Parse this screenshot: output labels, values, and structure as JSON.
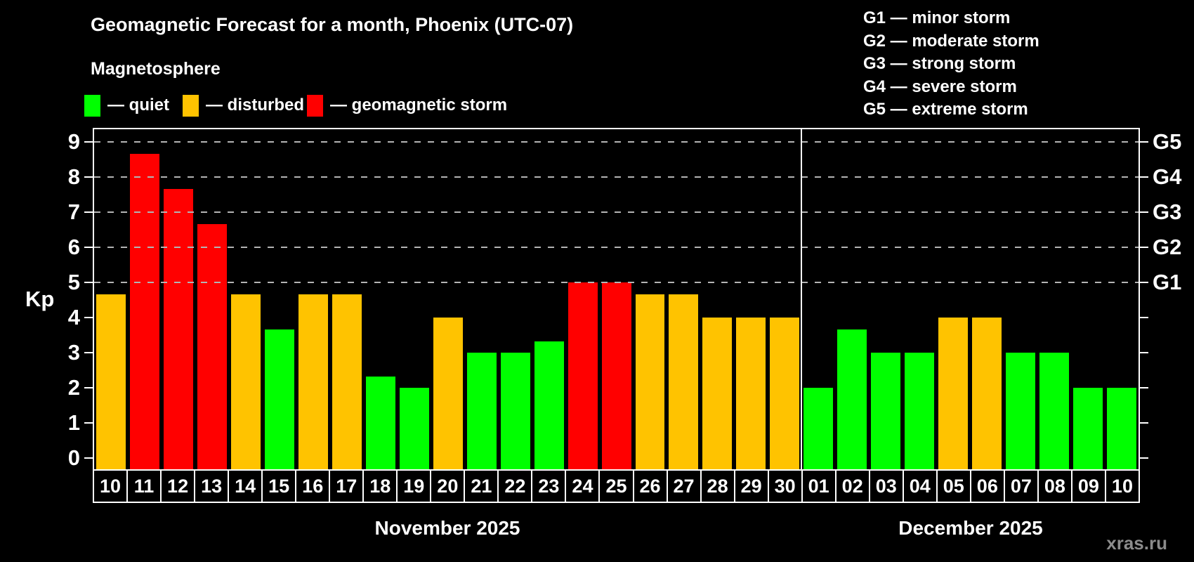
{
  "header": {
    "title": "Geomagnetic Forecast for a month, Phoenix (UTC-07)",
    "subtitle": "Magnetosphere"
  },
  "legend": {
    "items": [
      {
        "key": "quiet",
        "label": "— quiet",
        "color": "#00ff00"
      },
      {
        "key": "disturbed",
        "label": "— disturbed",
        "color": "#ffc300"
      },
      {
        "key": "storm",
        "label": "— geomagnetic storm",
        "color": "#ff0000"
      }
    ]
  },
  "g_legend": {
    "items": [
      {
        "label": "G1 — minor storm"
      },
      {
        "label": "G2 — moderate storm"
      },
      {
        "label": "G3 — strong storm"
      },
      {
        "label": "G4 — severe storm"
      },
      {
        "label": "G5 — extreme storm"
      }
    ]
  },
  "axes": {
    "y_label": "Kp",
    "y_ticks": [
      0,
      1,
      2,
      3,
      4,
      5,
      6,
      7,
      8,
      9
    ],
    "right_labels": [
      {
        "value": 5,
        "label": "G1"
      },
      {
        "value": 6,
        "label": "G2"
      },
      {
        "value": 7,
        "label": "G3"
      },
      {
        "value": 8,
        "label": "G4"
      },
      {
        "value": 9,
        "label": "G5"
      }
    ]
  },
  "months": [
    {
      "label": "November 2025",
      "key": "nov",
      "days": 21
    },
    {
      "label": "December 2025",
      "key": "dec",
      "days": 10
    }
  ],
  "watermark": "xras.ru",
  "chart_data": {
    "type": "bar",
    "title": "Geomagnetic Forecast for a month, Phoenix (UTC-07)",
    "xlabel": "",
    "ylabel": "Kp",
    "ylim": [
      0,
      9.4
    ],
    "grid": "dashed horizontal at Kp 5-9 only",
    "legend_position": "top-left and top-right",
    "gridlines": [
      5,
      6,
      7,
      8,
      9
    ],
    "status_colors": {
      "quiet": "#00ff00",
      "disturbed": "#ffc300",
      "storm": "#ff0000"
    },
    "categories": [
      "10",
      "11",
      "12",
      "13",
      "14",
      "15",
      "16",
      "17",
      "18",
      "19",
      "20",
      "21",
      "22",
      "23",
      "24",
      "25",
      "26",
      "27",
      "28",
      "29",
      "30",
      "01",
      "02",
      "03",
      "04",
      "05",
      "06",
      "07",
      "08",
      "09",
      "10"
    ],
    "points": [
      {
        "month": "nov",
        "day": "10",
        "kp": 4.67,
        "status": "disturbed"
      },
      {
        "month": "nov",
        "day": "11",
        "kp": 8.67,
        "status": "storm"
      },
      {
        "month": "nov",
        "day": "12",
        "kp": 7.67,
        "status": "storm"
      },
      {
        "month": "nov",
        "day": "13",
        "kp": 6.67,
        "status": "storm"
      },
      {
        "month": "nov",
        "day": "14",
        "kp": 4.67,
        "status": "disturbed"
      },
      {
        "month": "nov",
        "day": "15",
        "kp": 3.67,
        "status": "quiet"
      },
      {
        "month": "nov",
        "day": "16",
        "kp": 4.67,
        "status": "disturbed"
      },
      {
        "month": "nov",
        "day": "17",
        "kp": 4.67,
        "status": "disturbed"
      },
      {
        "month": "nov",
        "day": "18",
        "kp": 2.33,
        "status": "quiet"
      },
      {
        "month": "nov",
        "day": "19",
        "kp": 2.0,
        "status": "quiet"
      },
      {
        "month": "nov",
        "day": "20",
        "kp": 4.0,
        "status": "disturbed"
      },
      {
        "month": "nov",
        "day": "21",
        "kp": 3.0,
        "status": "quiet"
      },
      {
        "month": "nov",
        "day": "22",
        "kp": 3.0,
        "status": "quiet"
      },
      {
        "month": "nov",
        "day": "23",
        "kp": 3.33,
        "status": "quiet"
      },
      {
        "month": "nov",
        "day": "24",
        "kp": 5.0,
        "status": "storm"
      },
      {
        "month": "nov",
        "day": "25",
        "kp": 5.0,
        "status": "storm"
      },
      {
        "month": "nov",
        "day": "26",
        "kp": 4.67,
        "status": "disturbed"
      },
      {
        "month": "nov",
        "day": "27",
        "kp": 4.67,
        "status": "disturbed"
      },
      {
        "month": "nov",
        "day": "28",
        "kp": 4.0,
        "status": "disturbed"
      },
      {
        "month": "nov",
        "day": "29",
        "kp": 4.0,
        "status": "disturbed"
      },
      {
        "month": "nov",
        "day": "30",
        "kp": 4.0,
        "status": "disturbed"
      },
      {
        "month": "dec",
        "day": "01",
        "kp": 2.0,
        "status": "quiet"
      },
      {
        "month": "dec",
        "day": "02",
        "kp": 3.67,
        "status": "quiet"
      },
      {
        "month": "dec",
        "day": "03",
        "kp": 3.0,
        "status": "quiet"
      },
      {
        "month": "dec",
        "day": "04",
        "kp": 3.0,
        "status": "quiet"
      },
      {
        "month": "dec",
        "day": "05",
        "kp": 4.0,
        "status": "disturbed"
      },
      {
        "month": "dec",
        "day": "06",
        "kp": 4.0,
        "status": "disturbed"
      },
      {
        "month": "dec",
        "day": "07",
        "kp": 3.0,
        "status": "quiet"
      },
      {
        "month": "dec",
        "day": "08",
        "kp": 3.0,
        "status": "quiet"
      },
      {
        "month": "dec",
        "day": "09",
        "kp": 2.0,
        "status": "quiet"
      },
      {
        "month": "dec",
        "day": "10",
        "kp": 2.0,
        "status": "quiet"
      }
    ]
  }
}
